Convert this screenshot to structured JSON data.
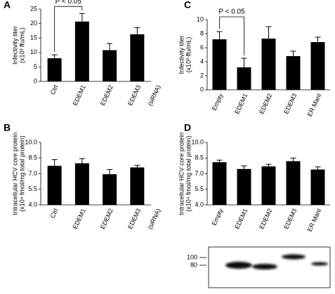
{
  "chart_data": [
    {
      "type": "bar",
      "panel": "A",
      "ylabel": [
        "Infectivity titer",
        "(x10³ ffu/mL)"
      ],
      "categories": [
        "Ctrl",
        "EDEM1",
        "EDEM2",
        "EDEM3"
      ],
      "category_note": "(siRNA)",
      "values": [
        8,
        20.7,
        10.8,
        16.3
      ],
      "errors": [
        1.2,
        2.8,
        2.3,
        2.3
      ],
      "color": "#000000",
      "ylim": [
        0,
        25
      ],
      "yticks": [
        0,
        5,
        10,
        15,
        20,
        25
      ],
      "significance": {
        "text": "P < 0.05",
        "pair": [
          "Ctrl",
          "EDEM1"
        ]
      }
    },
    {
      "type": "bar",
      "panel": "B",
      "ylabel": [
        "Intracellular HCV core protein",
        "(x10⁴ fmol/mg total protein)"
      ],
      "categories": [
        "Ctrl",
        "EDEM1",
        "EDEM2",
        "EDEM3"
      ],
      "category_note": "(siRNA)",
      "values": [
        7.75,
        8.0,
        6.95,
        7.6
      ],
      "errors": [
        0.6,
        0.45,
        0.45,
        0.2
      ],
      "color": "#000000",
      "ylim": [
        4,
        10
      ],
      "yticks": [
        {
          "value": 4,
          "label": "4.0"
        },
        5.5,
        {
          "value": 7,
          "label": "7.0"
        },
        8.5,
        {
          "value": 10,
          "label": "10.0"
        }
      ]
    },
    {
      "type": "bar",
      "panel": "C",
      "ylabel": [
        "Infectivity titer",
        "(x10³ ffu/mL)"
      ],
      "categories": [
        "Empty",
        "EDEM1",
        "EDEM2",
        "EDEM3",
        "ER ManI"
      ],
      "values": [
        7.2,
        3.2,
        7.3,
        4.8,
        6.8
      ],
      "errors": [
        1.1,
        1.3,
        1.7,
        0.7,
        0.7
      ],
      "color": "#000000",
      "ylim": [
        0,
        10
      ],
      "yticks": [
        0,
        2,
        4,
        6,
        8,
        10
      ],
      "significance": {
        "text": "P < 0.05",
        "pair": [
          "Empty",
          "EDEM1"
        ]
      }
    },
    {
      "type": "bar",
      "panel": "D",
      "ylabel": [
        "Intracellular HCV core protein",
        "(x10⁴ fmol/mg total protein)"
      ],
      "categories": [
        "Empty",
        "EDEM1",
        "EDEM2",
        "EDEM3",
        "ER ManI"
      ],
      "values": [
        8.1,
        7.45,
        7.7,
        8.2,
        7.4
      ],
      "errors": [
        0.2,
        0.3,
        0.2,
        0.3,
        0.25
      ],
      "color": "#000000",
      "ylim": [
        4,
        10
      ],
      "yticks": [
        {
          "value": 4,
          "label": "4.0"
        },
        5.5,
        {
          "value": 7,
          "label": "7.0"
        },
        8.5,
        {
          "value": 10,
          "label": "10.0"
        }
      ]
    }
  ],
  "blot": {
    "markers": [
      100,
      80
    ]
  }
}
